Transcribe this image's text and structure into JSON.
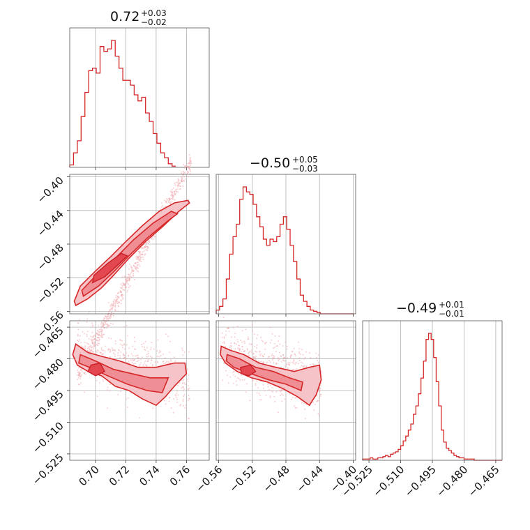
{
  "figure": {
    "colors": {
      "line": "#d62728",
      "scatter": "#f1a8ad",
      "level_outer": "#f6c4c8",
      "level_mid": "#ef8e95",
      "level_inner": "#e34850",
      "grid": "#b0b0b0",
      "frame": "#555555"
    },
    "titles": [
      {
        "main": "0.72",
        "sup": "+0.03",
        "sub": "−0.02"
      },
      {
        "main": "−0.50",
        "sup": "+0.05",
        "sub": "−0.03"
      },
      {
        "main": "−0.49",
        "sup": "+0.01",
        "sub": "−0.01"
      }
    ]
  },
  "chart_data": [
    {
      "type": "histogram",
      "panel": "p1-marginal",
      "ticks": [
        0.7,
        0.72,
        0.74,
        0.76
      ],
      "xlim": [
        0.683,
        0.775
      ],
      "bin_width": 0.0025,
      "bin_start": 0.683,
      "counts": [
        2,
        12,
        22,
        42,
        62,
        80,
        82,
        78,
        100,
        96,
        98,
        105,
        92,
        82,
        72,
        72,
        68,
        60,
        55,
        58,
        45,
        38,
        28,
        20,
        12,
        8,
        3,
        1
      ]
    },
    {
      "type": "histogram",
      "panel": "p2-marginal",
      "ticks": [
        -0.56,
        -0.52,
        -0.48,
        -0.44,
        -0.4
      ],
      "xlim": [
        -0.563,
        -0.397
      ],
      "bin_width": 0.004,
      "bin_start": -0.563,
      "counts": [
        3,
        6,
        12,
        28,
        48,
        62,
        72,
        92,
        102,
        98,
        96,
        88,
        78,
        70,
        60,
        55,
        60,
        58,
        62,
        72,
        78,
        68,
        55,
        42,
        28,
        15,
        10,
        6,
        3,
        2,
        1,
        0,
        0,
        0,
        0,
        0,
        0,
        0,
        0,
        0,
        0
      ]
    },
    {
      "type": "histogram",
      "panel": "p3-marginal",
      "ticks": [
        -0.525,
        -0.51,
        -0.495,
        -0.48,
        -0.465
      ],
      "xlim": [
        -0.528,
        -0.462
      ],
      "bin_width": 0.0012,
      "bin_start": -0.528,
      "counts": [
        1,
        1,
        1,
        2,
        1,
        1,
        2,
        2,
        3,
        4,
        3,
        5,
        6,
        7,
        9,
        12,
        16,
        20,
        25,
        30,
        38,
        45,
        55,
        68,
        82,
        100,
        105,
        100,
        85,
        65,
        45,
        25,
        15,
        10,
        8,
        6,
        4,
        3,
        2,
        2,
        1,
        1,
        1,
        1,
        0,
        0,
        0,
        0,
        0,
        0,
        0,
        0,
        0,
        0,
        0
      ]
    },
    {
      "type": "scatter-contour",
      "panel": "p1-vs-p2",
      "xlim": [
        0.683,
        0.775
      ],
      "ylim": [
        -0.563,
        -0.397
      ],
      "xticks": [
        0.7,
        0.72,
        0.74,
        0.76
      ],
      "yticks": [
        -0.4,
        -0.44,
        -0.48,
        -0.52,
        -0.56
      ],
      "trend": {
        "slope": 3.4,
        "intercept": -2.975,
        "spread": 0.006
      },
      "levels": {
        "outer": [
          [
            0.687,
            -0.553
          ],
          [
            0.695,
            -0.545
          ],
          [
            0.704,
            -0.532
          ],
          [
            0.712,
            -0.517
          ],
          [
            0.722,
            -0.497
          ],
          [
            0.733,
            -0.477
          ],
          [
            0.745,
            -0.458
          ],
          [
            0.755,
            -0.441
          ],
          [
            0.762,
            -0.431
          ],
          [
            0.761,
            -0.428
          ],
          [
            0.752,
            -0.431
          ],
          [
            0.742,
            -0.441
          ],
          [
            0.731,
            -0.458
          ],
          [
            0.72,
            -0.477
          ],
          [
            0.71,
            -0.495
          ],
          [
            0.7,
            -0.512
          ],
          [
            0.69,
            -0.53
          ],
          [
            0.686,
            -0.548
          ]
        ],
        "mid": [
          [
            0.692,
            -0.542
          ],
          [
            0.702,
            -0.53
          ],
          [
            0.712,
            -0.513
          ],
          [
            0.722,
            -0.494
          ],
          [
            0.734,
            -0.473
          ],
          [
            0.748,
            -0.452
          ],
          [
            0.754,
            -0.444
          ],
          [
            0.75,
            -0.441
          ],
          [
            0.738,
            -0.455
          ],
          [
            0.725,
            -0.475
          ],
          [
            0.713,
            -0.497
          ],
          [
            0.701,
            -0.516
          ],
          [
            0.691,
            -0.535
          ]
        ],
        "inner": [
          [
            0.698,
            -0.526
          ],
          [
            0.706,
            -0.519
          ],
          [
            0.714,
            -0.506
          ],
          [
            0.721,
            -0.494
          ],
          [
            0.717,
            -0.491
          ],
          [
            0.708,
            -0.503
          ],
          [
            0.699,
            -0.517
          ]
        ]
      }
    },
    {
      "type": "scatter-contour",
      "panel": "p1-vs-p3",
      "xlim": [
        0.683,
        0.775
      ],
      "ylim": [
        -0.528,
        -0.462
      ],
      "xticks": [
        0.7,
        0.72,
        0.74,
        0.76
      ],
      "xtick_labels": [
        "0.70",
        "0.72",
        "0.74",
        "0.76"
      ],
      "yticks": [
        -0.465,
        -0.48,
        -0.495,
        -0.51,
        -0.525
      ],
      "ytick_labels": [
        "−0.465",
        "−0.480",
        "−0.495",
        "−0.510",
        "−0.525"
      ],
      "levels": {
        "outer": [
          [
            0.687,
            -0.473
          ],
          [
            0.695,
            -0.477
          ],
          [
            0.705,
            -0.479
          ],
          [
            0.716,
            -0.481
          ],
          [
            0.728,
            -0.484
          ],
          [
            0.74,
            -0.484
          ],
          [
            0.752,
            -0.482
          ],
          [
            0.759,
            -0.482
          ],
          [
            0.76,
            -0.487
          ],
          [
            0.752,
            -0.493
          ],
          [
            0.746,
            -0.498
          ],
          [
            0.74,
            -0.502
          ],
          [
            0.731,
            -0.499
          ],
          [
            0.722,
            -0.495
          ],
          [
            0.713,
            -0.493
          ],
          [
            0.704,
            -0.488
          ],
          [
            0.695,
            -0.486
          ],
          [
            0.688,
            -0.483
          ],
          [
            0.685,
            -0.478
          ]
        ],
        "mid": [
          [
            0.69,
            -0.478
          ],
          [
            0.7,
            -0.481
          ],
          [
            0.712,
            -0.485
          ],
          [
            0.724,
            -0.487
          ],
          [
            0.736,
            -0.489
          ],
          [
            0.748,
            -0.489
          ],
          [
            0.744,
            -0.496
          ],
          [
            0.734,
            -0.495
          ],
          [
            0.721,
            -0.492
          ],
          [
            0.708,
            -0.488
          ],
          [
            0.696,
            -0.484
          ],
          [
            0.689,
            -0.482
          ]
        ],
        "inner": [
          [
            0.697,
            -0.483
          ],
          [
            0.703,
            -0.482
          ],
          [
            0.706,
            -0.486
          ],
          [
            0.7,
            -0.488
          ],
          [
            0.695,
            -0.486
          ]
        ]
      }
    },
    {
      "type": "scatter-contour",
      "panel": "p2-vs-p3",
      "xlim": [
        -0.563,
        -0.397
      ],
      "ylim": [
        -0.528,
        -0.462
      ],
      "xticks": [
        -0.56,
        -0.52,
        -0.48,
        -0.44,
        -0.4
      ],
      "xtick_labels": [
        "−0.56",
        "−0.52",
        "−0.48",
        "−0.44",
        "−0.40"
      ],
      "yticks": [
        -0.465,
        -0.48,
        -0.495,
        -0.51,
        -0.525
      ],
      "levels": {
        "outer": [
          [
            -0.557,
            -0.474
          ],
          [
            -0.546,
            -0.476
          ],
          [
            -0.53,
            -0.478
          ],
          [
            -0.512,
            -0.482
          ],
          [
            -0.492,
            -0.484
          ],
          [
            -0.47,
            -0.486
          ],
          [
            -0.452,
            -0.484
          ],
          [
            -0.44,
            -0.483
          ],
          [
            -0.438,
            -0.49
          ],
          [
            -0.444,
            -0.497
          ],
          [
            -0.452,
            -0.502
          ],
          [
            -0.466,
            -0.498
          ],
          [
            -0.484,
            -0.494
          ],
          [
            -0.502,
            -0.491
          ],
          [
            -0.521,
            -0.489
          ],
          [
            -0.538,
            -0.486
          ],
          [
            -0.552,
            -0.482
          ],
          [
            -0.558,
            -0.478
          ]
        ],
        "mid": [
          [
            -0.55,
            -0.478
          ],
          [
            -0.535,
            -0.48
          ],
          [
            -0.516,
            -0.484
          ],
          [
            -0.495,
            -0.486
          ],
          [
            -0.476,
            -0.489
          ],
          [
            -0.46,
            -0.491
          ],
          [
            -0.462,
            -0.495
          ],
          [
            -0.48,
            -0.492
          ],
          [
            -0.5,
            -0.49
          ],
          [
            -0.522,
            -0.487
          ],
          [
            -0.542,
            -0.484
          ],
          [
            -0.551,
            -0.481
          ]
        ],
        "inner": [
          [
            -0.534,
            -0.484
          ],
          [
            -0.522,
            -0.483
          ],
          [
            -0.516,
            -0.486
          ],
          [
            -0.524,
            -0.488
          ],
          [
            -0.533,
            -0.487
          ]
        ]
      }
    }
  ]
}
